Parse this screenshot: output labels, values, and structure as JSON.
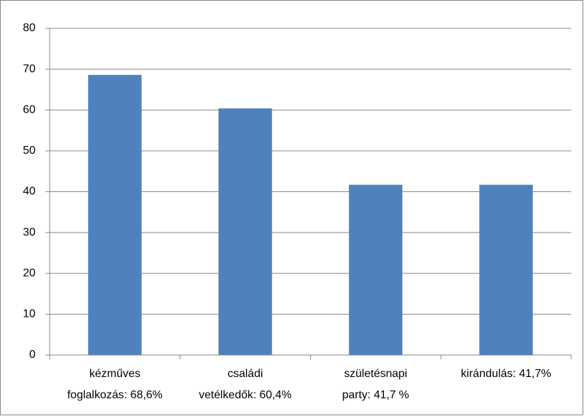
{
  "chart_data": {
    "type": "bar",
    "categories": [
      "kézműves\nfoglalkozás: 68,6%",
      "családi\nvetélkedők: 60,4%",
      "születésnapi\nparty: 41,7 %",
      "kirándulás: 41,7%"
    ],
    "values": [
      68.6,
      60.4,
      41.7,
      41.7
    ],
    "color": "#4f81bd",
    "ylim": [
      0,
      80
    ],
    "yticks": [
      0,
      10,
      20,
      30,
      40,
      50,
      60,
      70,
      80
    ],
    "grid": true
  }
}
